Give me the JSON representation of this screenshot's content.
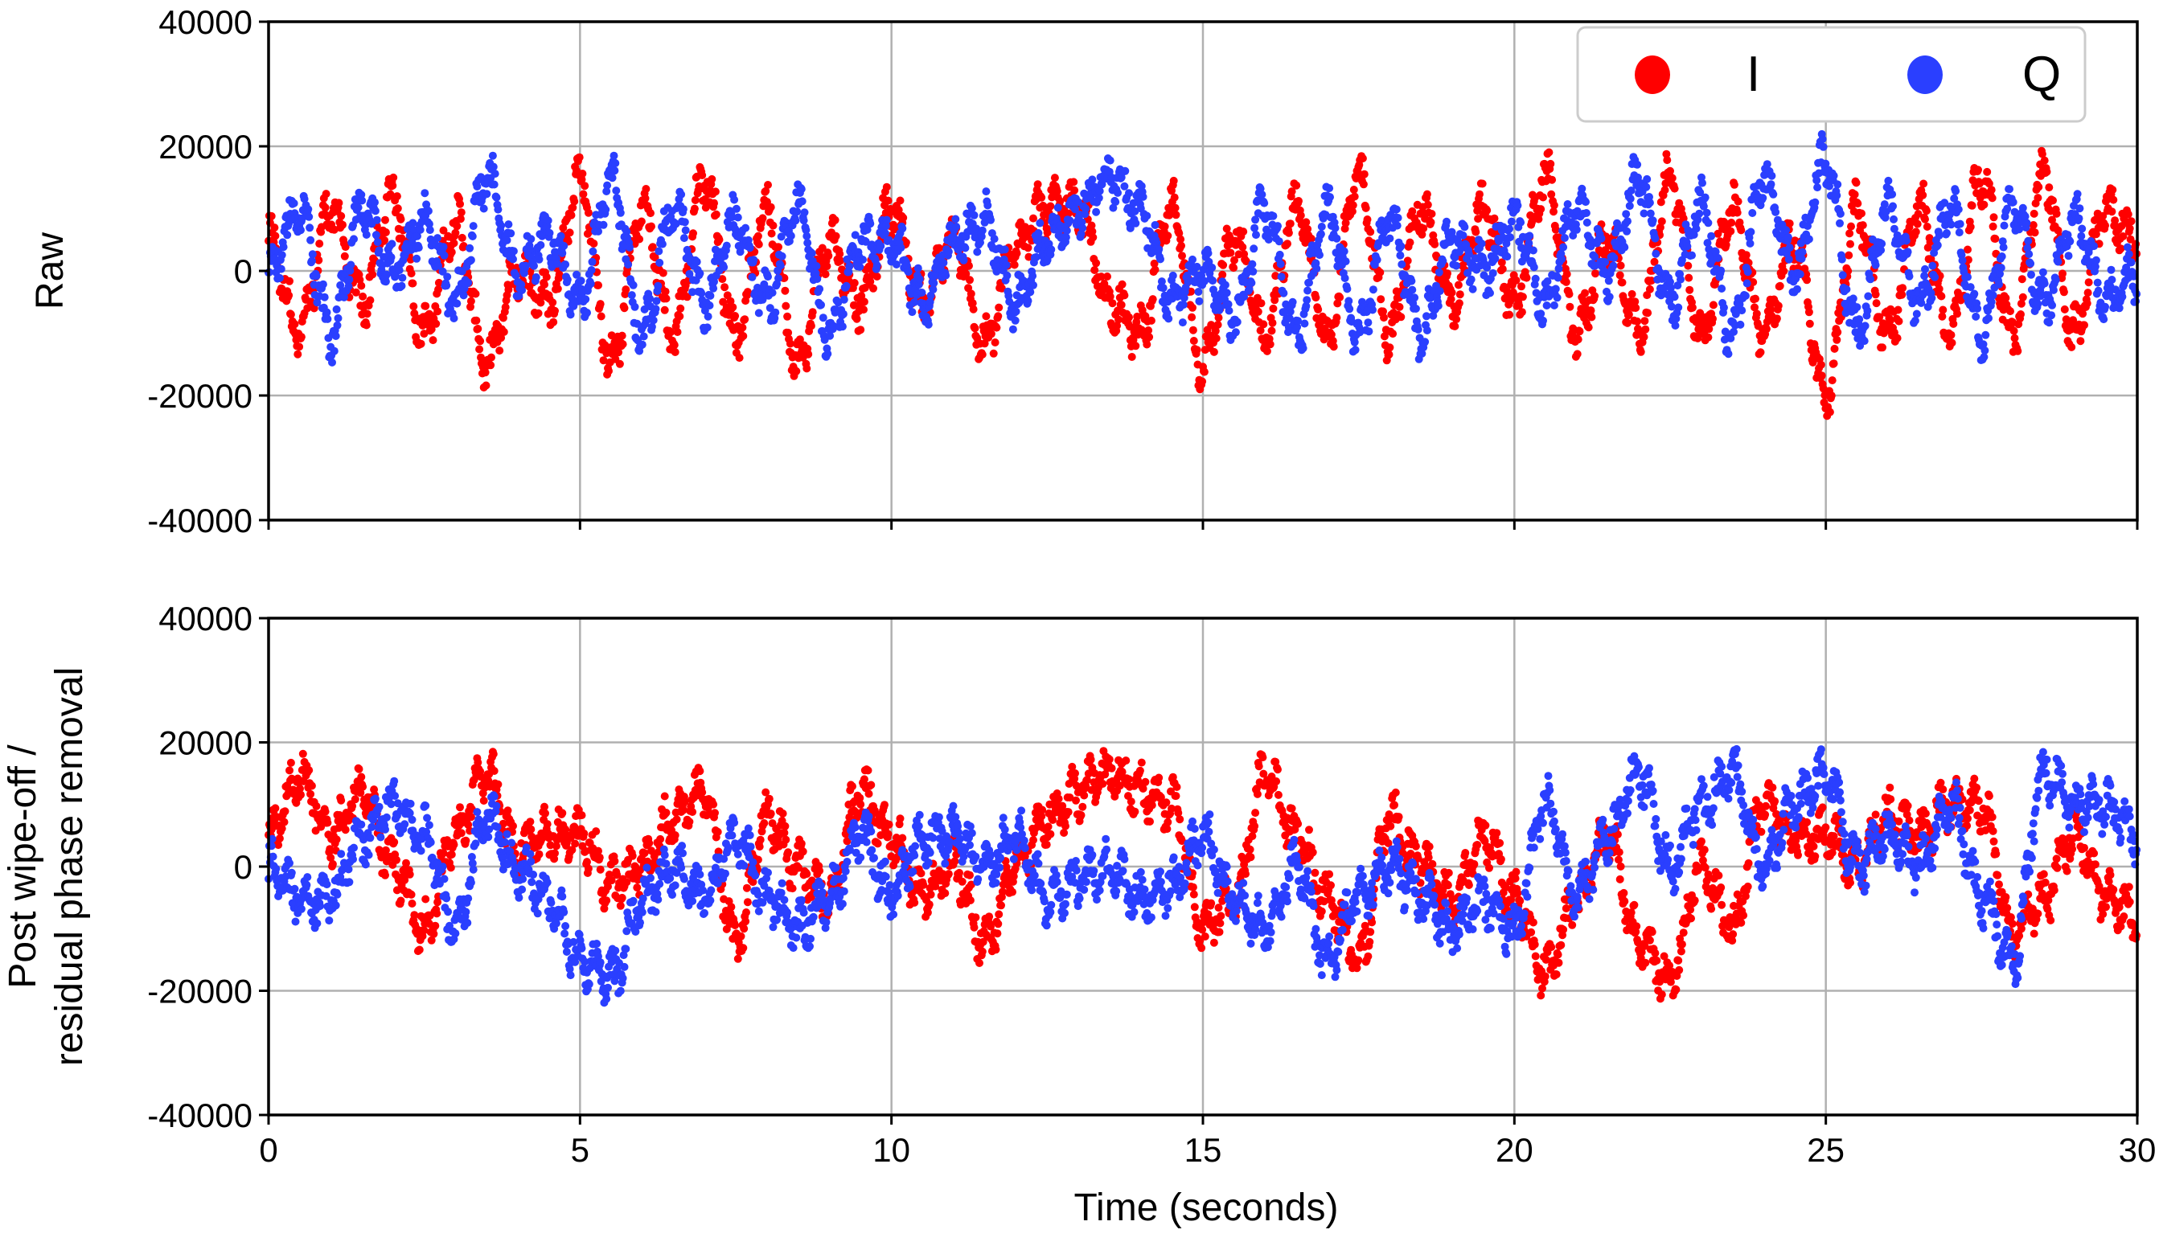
{
  "chart_data": [
    {
      "type": "scatter",
      "panel": "top",
      "ylabel": "Raw",
      "xlabel": "",
      "xlim": [
        0,
        30
      ],
      "ylim": [
        -40000,
        40000
      ],
      "xticks": [
        "0",
        "5",
        "10",
        "15",
        "20",
        "25",
        "30"
      ],
      "yticks": [
        "40000",
        "20000",
        "0",
        "-20000",
        "-40000"
      ],
      "grid": true,
      "legend": {
        "placement": "top-right",
        "entries": [
          "I",
          "Q"
        ]
      },
      "x_step": 0.5,
      "series": [
        {
          "name": "I",
          "color": "#ff0000",
          "values": [
            5000,
            -10000,
            10000,
            -5000,
            12000,
            -10000,
            8000,
            -15000,
            0,
            -5000,
            15000,
            -15000,
            10000,
            -10000,
            15000,
            -10000,
            10000,
            -15000,
            5000,
            -5000,
            10000,
            -5000,
            5000,
            -12000,
            5000,
            10000,
            10000,
            -5000,
            -10000,
            10000,
            -15000,
            5000,
            -10000,
            10000,
            -10000,
            15000,
            -10000,
            10000,
            -5000,
            10000,
            -5000,
            15000,
            -10000,
            5000,
            -10000,
            15000,
            -10000,
            10000,
            -10000,
            5000,
            -20000,
            10000,
            -10000,
            10000,
            -10000,
            15000,
            -10000,
            15000,
            -10000,
            10000,
            5000
          ]
        },
        {
          "name": "Q",
          "color": "#2a3fff",
          "values": [
            0,
            10000,
            -10000,
            10000,
            0,
            8000,
            -5000,
            15000,
            0,
            5000,
            -5000,
            15000,
            -10000,
            10000,
            -5000,
            8000,
            -5000,
            10000,
            -10000,
            5000,
            5000,
            -5000,
            5000,
            8000,
            -5000,
            5000,
            10000,
            15000,
            10000,
            -5000,
            0,
            -8000,
            10000,
            -10000,
            10000,
            -10000,
            8000,
            -10000,
            5000,
            0,
            8000,
            -5000,
            10000,
            0,
            15000,
            -5000,
            10000,
            -10000,
            15000,
            0,
            18000,
            -10000,
            10000,
            -5000,
            10000,
            -10000,
            10000,
            -5000,
            8000,
            -5000,
            0
          ]
        }
      ]
    },
    {
      "type": "scatter",
      "panel": "bottom",
      "ylabel": "Post wipe-off /\nresidual phase removal",
      "ylabel_lines": [
        "Post wipe-off /",
        "residual phase removal"
      ],
      "xlabel": "Time (seconds)",
      "xlim": [
        0,
        30
      ],
      "ylim": [
        -40000,
        40000
      ],
      "xticks": [
        "0",
        "5",
        "10",
        "15",
        "20",
        "25",
        "30"
      ],
      "yticks": [
        "40000",
        "20000",
        "0",
        "-20000",
        "-40000"
      ],
      "grid": true,
      "x_step": 0.5,
      "series": [
        {
          "name": "I",
          "color": "#ff0000",
          "values": [
            5000,
            15000,
            5000,
            12000,
            0,
            -10000,
            5000,
            15000,
            3000,
            5000,
            5000,
            -3000,
            0,
            8000,
            12000,
            -12000,
            8000,
            0,
            -5000,
            12000,
            5000,
            -5000,
            0,
            -12000,
            0,
            8000,
            12000,
            15000,
            12000,
            10000,
            -10000,
            -5000,
            15000,
            5000,
            -5000,
            -15000,
            8000,
            0,
            -5000,
            5000,
            -5000,
            -17000,
            -5000,
            5000,
            -12000,
            -18000,
            0,
            -10000,
            10000,
            5000,
            5000,
            0,
            8000,
            5000,
            10000,
            10000,
            -10000,
            -5000,
            5000,
            -5000,
            -8000
          ]
        },
        {
          "name": "Q",
          "color": "#2a3fff",
          "values": [
            0,
            -5000,
            -5000,
            5000,
            10000,
            5000,
            -10000,
            8000,
            0,
            -5000,
            -15000,
            -18000,
            -5000,
            0,
            -5000,
            5000,
            -5000,
            -10000,
            -5000,
            5000,
            -5000,
            5000,
            5000,
            0,
            5000,
            -5000,
            -2000,
            0,
            -5000,
            -3000,
            5000,
            -5000,
            -10000,
            0,
            -15000,
            -5000,
            0,
            -5000,
            -10000,
            -5000,
            -10000,
            10000,
            -5000,
            5000,
            15000,
            0,
            10000,
            15000,
            0,
            10000,
            15000,
            0,
            5000,
            0,
            10000,
            -5000,
            -15000,
            15000,
            10000,
            10000,
            5000
          ]
        }
      ]
    }
  ]
}
